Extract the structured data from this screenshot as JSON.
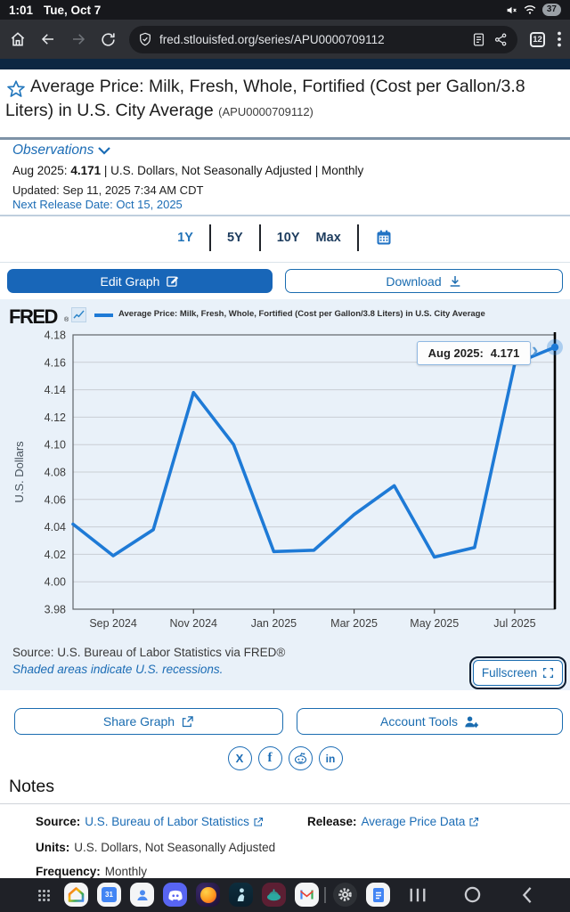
{
  "colors": {
    "fred_blue": "#1e7ad6",
    "link_blue": "#1b6cb5",
    "navy_strip": "#0d2742",
    "chart_bg": "#e9f1f9",
    "edit_btn_bg": "#1866b8"
  },
  "status_bar": {
    "time": "1:01",
    "date": "Tue, Oct 7",
    "battery_percent": "37"
  },
  "browser": {
    "url": "fred.stlouisfed.org/series/APU0000709112",
    "tab_count": "12"
  },
  "header": {
    "title": "Average Price: Milk, Fresh, Whole, Fortified (Cost per Gallon/3.8 Liters) in U.S. City Average",
    "series_id": "(APU0000709112)"
  },
  "observations": {
    "label": "Observations",
    "date_label": "Aug 2025:",
    "value": "4.171",
    "meta": "| U.S. Dollars, Not Seasonally Adjusted | Monthly",
    "updated": "Updated: Sep 11, 2025 7:34 AM CDT",
    "next_release": "Next Release Date: Oct 15, 2025"
  },
  "range_selector": {
    "options": [
      "1Y",
      "5Y",
      "10Y",
      "Max"
    ],
    "active": "1Y"
  },
  "actions": {
    "edit_graph": "Edit Graph",
    "download": "Download",
    "share_graph": "Share Graph",
    "account_tools": "Account Tools",
    "fullscreen": "Fullscreen"
  },
  "fred_logo": {
    "text": "FRED",
    "reg": "®"
  },
  "chart_footer": {
    "source": "Source: U.S. Bureau of Labor Statistics via FRED®",
    "recession_note": "Shaded areas indicate U.S. recessions."
  },
  "chart_data": {
    "type": "line",
    "legend_label": "Average Price: Milk, Fresh, Whole, Fortified (Cost per Gallon/3.8 Liters) in U.S. City Average",
    "ylabel": "U.S. Dollars",
    "ylim": [
      3.98,
      4.18
    ],
    "ytick_step": 0.02,
    "x": [
      "Aug 2024",
      "Sep 2024",
      "Oct 2024",
      "Nov 2024",
      "Dec 2024",
      "Jan 2025",
      "Feb 2025",
      "Mar 2025",
      "Apr 2025",
      "May 2025",
      "Jun 2025",
      "Jul 2025",
      "Aug 2025"
    ],
    "values": [
      4.042,
      4.019,
      4.038,
      4.138,
      4.1,
      4.022,
      4.023,
      4.049,
      4.07,
      4.018,
      4.025,
      4.159,
      4.171
    ],
    "xtick_labels": [
      "Sep 2024",
      "Nov 2024",
      "Jan 2025",
      "Mar 2025",
      "May 2025",
      "Jul 2025"
    ],
    "xtick_indices": [
      1,
      3,
      5,
      7,
      9,
      11
    ],
    "line_color": "#1e7ad6",
    "grid": true,
    "legend_position": "top",
    "tooltip": {
      "label": "Aug 2025:",
      "value": "4.171"
    }
  },
  "notes": {
    "heading": "Notes",
    "source_label": "Source:",
    "source_link": "U.S. Bureau of Labor Statistics",
    "release_label": "Release:",
    "release_link": "Average Price Data",
    "units_label": "Units:",
    "units_value": "U.S. Dollars, Not Seasonally Adjusted",
    "frequency_label": "Frequency:",
    "frequency_value": "Monthly"
  },
  "taskbar": {
    "calendar_day": "31",
    "apps": [
      "apps-grid",
      "google-home",
      "google-calendar",
      "contacts",
      "discord",
      "firefox",
      "kindle",
      "cooking-app",
      "gmail",
      "settings",
      "google-docs"
    ]
  }
}
